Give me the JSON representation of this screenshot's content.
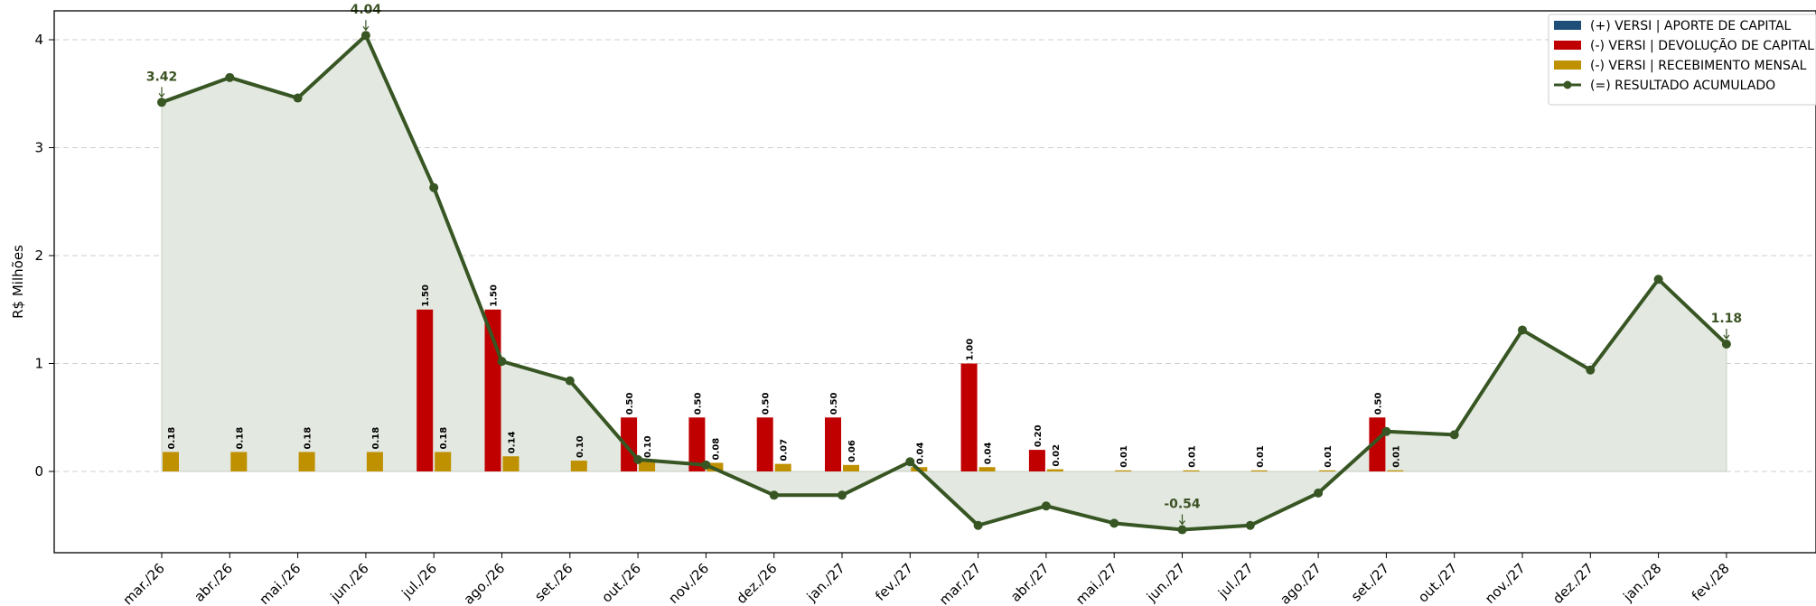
{
  "chart_data": {
    "type": "bar",
    "title": "",
    "xlabel": "",
    "ylabel": "R$ Milhões",
    "ylim": [
      -0.76,
      4.26
    ],
    "yticks": [
      0,
      1,
      2,
      3,
      4
    ],
    "grid": "horizontal-dashed",
    "legend_position": "top-right",
    "categories": [
      "mar./26",
      "abr./26",
      "mai./26",
      "jun./26",
      "jul./26",
      "ago./26",
      "set./26",
      "out./26",
      "nov./26",
      "dez./26",
      "jan./27",
      "fev./27",
      "mar./27",
      "abr./27",
      "mai./27",
      "jun./27",
      "jul./27",
      "ago./27",
      "set./27",
      "out./27",
      "nov./27",
      "dez./27",
      "jan./28",
      "fev./28"
    ],
    "series": [
      {
        "name": "(+) VERSI | APORTE DE CAPITAL",
        "kind": "bar",
        "color": "#1f4e79",
        "values": [
          0,
          0,
          0,
          0,
          0,
          0,
          0,
          0,
          0,
          0,
          0,
          0,
          0,
          0,
          0,
          0,
          0,
          0,
          0,
          0,
          0,
          0,
          0,
          0
        ]
      },
      {
        "name": "(-) VERSI | DEVOLUÇÃO DE CAPITAL",
        "kind": "bar",
        "color": "#c00000",
        "values": [
          0,
          0,
          0,
          0,
          1.5,
          1.5,
          0,
          0.5,
          0.5,
          0.5,
          0.5,
          0,
          1.0,
          0.2,
          0,
          0,
          0,
          0,
          0.5,
          0,
          0,
          0,
          0,
          0
        ],
        "labels": [
          "",
          "",
          "",
          "",
          "1.50",
          "1.50",
          "",
          "0.50",
          "0.50",
          "0.50",
          "0.50",
          "",
          "1.00",
          "0.20",
          "",
          "",
          "",
          "",
          "0.50",
          "",
          "",
          "",
          "",
          ""
        ]
      },
      {
        "name": "(-) VERSI | RECEBIMENTO MENSAL",
        "kind": "bar",
        "color": "#bf9000",
        "values": [
          0.18,
          0.18,
          0.18,
          0.18,
          0.18,
          0.14,
          0.1,
          0.1,
          0.08,
          0.07,
          0.06,
          0.04,
          0.04,
          0.02,
          0.01,
          0.01,
          0.01,
          0.01,
          0.01,
          0,
          0,
          0,
          0,
          0
        ],
        "labels": [
          "0.18",
          "0.18",
          "0.18",
          "0.18",
          "0.18",
          "0.14",
          "0.10",
          "0.10",
          "0.08",
          "0.07",
          "0.06",
          "0.04",
          "0.04",
          "0.02",
          "0.01",
          "0.01",
          "0.01",
          "0.01",
          "0.01",
          "",
          "",
          "",
          "",
          ""
        ]
      },
      {
        "name": "(=) RESULTADO ACUMULADO",
        "kind": "line",
        "color": "#375623",
        "fill": "#e3e8e0",
        "values": [
          3.42,
          3.65,
          3.46,
          4.04,
          2.63,
          1.02,
          0.84,
          0.11,
          0.06,
          -0.22,
          -0.22,
          0.09,
          -0.5,
          -0.32,
          -0.48,
          -0.54,
          -0.5,
          -0.2,
          0.37,
          0.34,
          1.31,
          0.94,
          1.78,
          1.18
        ]
      }
    ],
    "annotations": [
      {
        "index": 0,
        "text": "3.42"
      },
      {
        "index": 3,
        "text": "4.04"
      },
      {
        "index": 15,
        "text": "-0.54"
      },
      {
        "index": 23,
        "text": "1.18"
      }
    ]
  }
}
